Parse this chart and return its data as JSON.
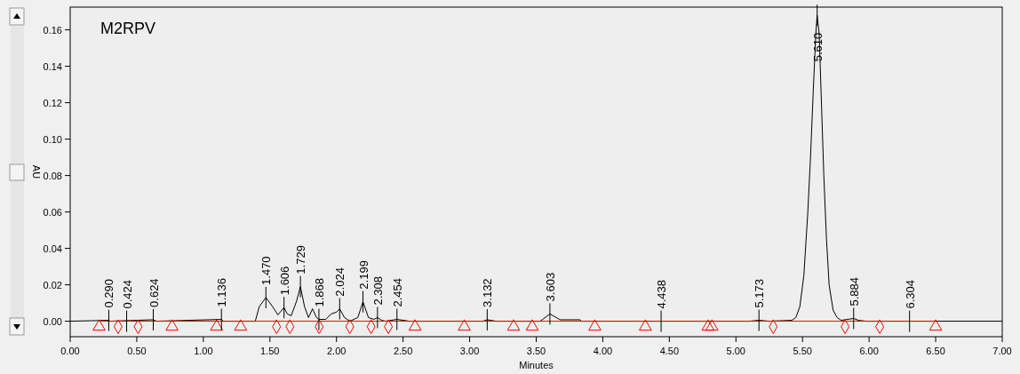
{
  "chart_data": {
    "type": "line",
    "title": "M2RPV",
    "xlabel": "Minutes",
    "ylabel": "AU",
    "xlim": [
      0,
      7
    ],
    "ylim": [
      -0.0085,
      0.1725
    ],
    "xticks": [
      {
        "value": 0,
        "label": "0.00"
      },
      {
        "value": 0.5,
        "label": "0.50"
      },
      {
        "value": 1,
        "label": "1.00"
      },
      {
        "value": 1.5,
        "label": "1.50"
      },
      {
        "value": 2,
        "label": "2.00"
      },
      {
        "value": 2.5,
        "label": "2.50"
      },
      {
        "value": 3,
        "label": "3.00"
      },
      {
        "value": 3.5,
        "label": "3.50"
      },
      {
        "value": 4,
        "label": "4.00"
      },
      {
        "value": 4.5,
        "label": "4.50"
      },
      {
        "value": 5,
        "label": "5.00"
      },
      {
        "value": 5.5,
        "label": "5.50"
      },
      {
        "value": 6,
        "label": "6.00"
      },
      {
        "value": 6.5,
        "label": "6.50"
      },
      {
        "value": 7,
        "label": "7.00"
      }
    ],
    "yticks": [
      {
        "value": 0,
        "label": "0.00"
      },
      {
        "value": 0.02,
        "label": "0.02"
      },
      {
        "value": 0.04,
        "label": "0.04"
      },
      {
        "value": 0.06,
        "label": "0.06"
      },
      {
        "value": 0.08,
        "label": "0.08"
      },
      {
        "value": 0.1,
        "label": "0.10"
      },
      {
        "value": 0.12,
        "label": "0.12"
      },
      {
        "value": 0.14,
        "label": "0.14"
      },
      {
        "value": 0.16,
        "label": "0.16"
      }
    ],
    "grid": false,
    "series": [
      {
        "color": "#000000",
        "marker": "none",
        "x": [
          0,
          0.29,
          0.3,
          0.62,
          0.65,
          1.136,
          1.15,
          1.39,
          1.42,
          1.47,
          1.52,
          1.56,
          1.606,
          1.63,
          1.66,
          1.7,
          1.729,
          1.76,
          1.79,
          1.82,
          1.85,
          1.868,
          1.92,
          1.96,
          2.0,
          2.024,
          2.06,
          2.1,
          2.16,
          2.199,
          2.24,
          2.28,
          2.308,
          2.34,
          2.37,
          2.454,
          2.55,
          3.1,
          3.132,
          3.2,
          3.53,
          3.603,
          3.68,
          3.83,
          3.84,
          5.1,
          5.173,
          5.25,
          5.42,
          5.45,
          5.48,
          5.51,
          5.54,
          5.56,
          5.58,
          5.6,
          5.61,
          5.625,
          5.64,
          5.66,
          5.68,
          5.7,
          5.73,
          5.76,
          5.79,
          5.884,
          5.92,
          5.98,
          6.304,
          7
        ],
        "values": [
          0,
          0.0005,
          0,
          0.0008,
          0,
          0.001,
          0,
          0,
          0.008,
          0.013,
          0.008,
          0.0035,
          0.0075,
          0.004,
          0.003,
          0.011,
          0.019,
          0.008,
          0.002,
          0.0068,
          0.002,
          0.001,
          0.001,
          0.004,
          0.005,
          0.0068,
          0.002,
          0,
          0.002,
          0.0107,
          0.002,
          0.001,
          0.002,
          0.0005,
          0,
          0.001,
          0,
          0,
          0.0008,
          0,
          0,
          0.004,
          0.0008,
          0.0008,
          0,
          0,
          0.0005,
          0,
          0.0005,
          0.002,
          0.008,
          0.025,
          0.06,
          0.09,
          0.125,
          0.158,
          0.168,
          0.158,
          0.125,
          0.08,
          0.045,
          0.02,
          0.006,
          0.002,
          0.0005,
          0.0015,
          0.0005,
          0,
          0,
          0
        ]
      },
      {
        "type": "line",
        "color": "#ff0000",
        "marker": "none",
        "x": [
          0.217,
          6.5
        ],
        "values": [
          0,
          0
        ]
      },
      {
        "type": "scatter",
        "color": "#ff0000",
        "marker": "triangle",
        "x": [
          0.217,
          0.765,
          1.1,
          1.28,
          2.59,
          2.96,
          3.33,
          3.47,
          3.94,
          4.32,
          4.79,
          4.82,
          6.5
        ],
        "values": [
          -0.003,
          -0.003,
          -0.003,
          -0.003,
          -0.003,
          -0.003,
          -0.003,
          -0.003,
          -0.003,
          -0.003,
          -0.003,
          -0.003,
          -0.003
        ]
      },
      {
        "type": "scatter",
        "color": "#ff0000",
        "marker": "diamond",
        "x": [
          0.36,
          0.51,
          1.55,
          1.65,
          1.87,
          2.1,
          2.26,
          2.39,
          5.28,
          5.82,
          6.08
        ],
        "values": [
          -0.003,
          -0.003,
          -0.003,
          -0.003,
          -0.003,
          -0.003,
          -0.003,
          -0.003,
          -0.003,
          -0.003,
          -0.003
        ]
      }
    ],
    "annotations": [
      {
        "text": "0.290",
        "x": 0.29,
        "y": 0.0005
      },
      {
        "text": "0.424",
        "x": 0.424,
        "y": 0
      },
      {
        "text": "0.624",
        "x": 0.624,
        "y": 0.0008
      },
      {
        "text": "1.136",
        "x": 1.136,
        "y": 0.001
      },
      {
        "text": "1.470",
        "x": 1.47,
        "y": 0.013
      },
      {
        "text": "1.606",
        "x": 1.606,
        "y": 0.0075
      },
      {
        "text": "1.729",
        "x": 1.729,
        "y": 0.019
      },
      {
        "text": "1.868",
        "x": 1.868,
        "y": 0.001
      },
      {
        "text": "2.024",
        "x": 2.024,
        "y": 0.0068
      },
      {
        "text": "2.199",
        "x": 2.199,
        "y": 0.0107
      },
      {
        "text": "2.308",
        "x": 2.308,
        "y": 0.002
      },
      {
        "text": "2.454",
        "x": 2.454,
        "y": 0.001
      },
      {
        "text": "3.132",
        "x": 3.132,
        "y": 0.0008
      },
      {
        "text": "3.603",
        "x": 3.603,
        "y": 0.004
      },
      {
        "text": "4.438",
        "x": 4.438,
        "y": 0
      },
      {
        "text": "5.173",
        "x": 5.173,
        "y": 0.0005
      },
      {
        "text": "5.610",
        "x": 5.61,
        "y": 0.168
      },
      {
        "text": "5.884",
        "x": 5.884,
        "y": 0.0015
      },
      {
        "text": "6.304",
        "x": 6.304,
        "y": 0
      }
    ]
  }
}
